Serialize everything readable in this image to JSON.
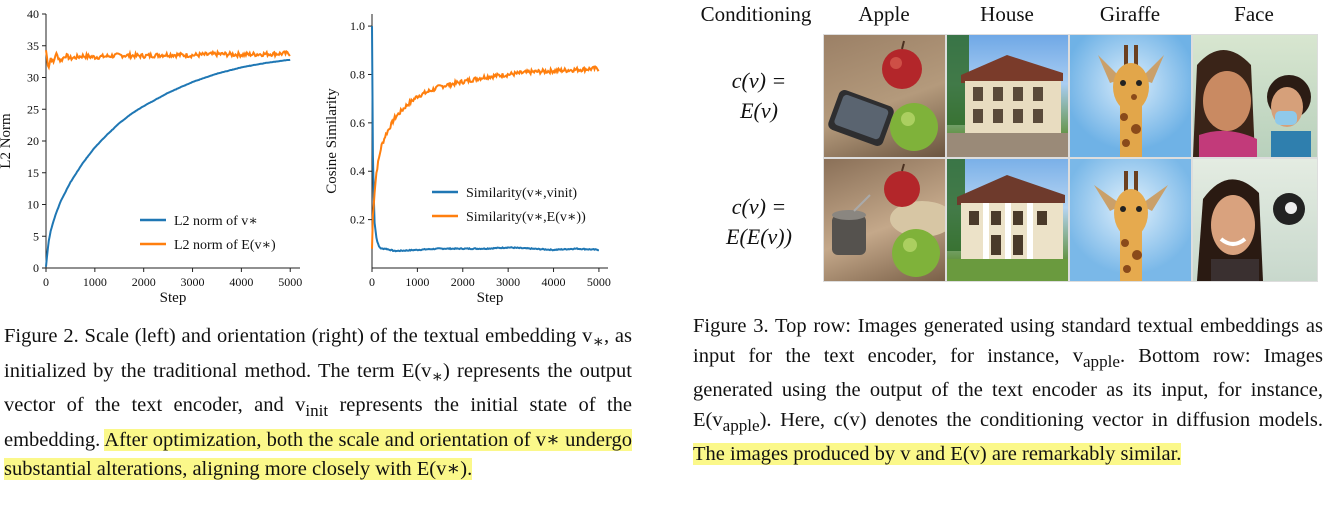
{
  "figure2": {
    "caption_parts": [
      "Figure 2. Scale (left) and orientation (right) of the textual embedding v",
      "∗",
      ", as initialized by the traditional method. The term E(v",
      "∗",
      ") represents the output vector of the text encoder, and v",
      "init",
      " represents the initial state of the embedding. "
    ],
    "caption_highlight": "After optimization, both the scale and orientation of v∗ undergo substantial alterations, aligning more closely with E(v∗)."
  },
  "figure3": {
    "caption_plain": "Figure 3. Top row: Images generated using standard textual embeddings as input for the text encoder, for instance, v",
    "caption_sub1": "apple",
    "caption_mid": ". Bottom row: Images generated using the output of the text encoder as its input, for instance, E(v",
    "caption_sub2": "apple",
    "caption_after": "). Here, c(v) denotes the conditioning vector in diffusion models. ",
    "caption_highlight": "The images produced by v and E(v) are remarkably similar.",
    "headers": [
      "Conditioning",
      "Apple",
      "House",
      "Giraffe",
      "Face"
    ],
    "rows": [
      {
        "label_line1": "c(v) =",
        "label_line2": "E(v)"
      },
      {
        "label_line1": "c(v) =",
        "label_line2": "E(E(v))"
      }
    ]
  },
  "chart_data": [
    {
      "type": "line",
      "xlabel": "Step",
      "ylabel": "L2 Norm",
      "xlim": [
        0,
        5200
      ],
      "ylim": [
        0,
        40
      ],
      "xticks": [
        0,
        1000,
        2000,
        3000,
        4000,
        5000
      ],
      "yticks": [
        0,
        5,
        10,
        15,
        20,
        25,
        30,
        35,
        40
      ],
      "legend": "bottom-right",
      "series": [
        {
          "name": "L2 norm of v∗",
          "color": "#1f77b4",
          "x": [
            0,
            50,
            100,
            200,
            300,
            500,
            750,
            1000,
            1250,
            1500,
            1750,
            2000,
            2500,
            3000,
            3500,
            4000,
            4500,
            5000
          ],
          "y": [
            0.2,
            4,
            6,
            8.5,
            10.5,
            13.5,
            16.5,
            19,
            21,
            22.8,
            24.3,
            25.5,
            27.6,
            29.3,
            30.6,
            31.6,
            32.3,
            32.8
          ]
        },
        {
          "name": "L2 norm of E(v∗)",
          "color": "#ff7f0e",
          "x": [
            0,
            50,
            100,
            150,
            200,
            300,
            400,
            500,
            750,
            1000,
            1500,
            2000,
            2500,
            3000,
            3500,
            4000,
            4500,
            5000
          ],
          "y": [
            34.3,
            31.5,
            33.2,
            32.2,
            33.8,
            32.6,
            33.5,
            33.0,
            33.4,
            33.2,
            33.5,
            33.4,
            33.6,
            33.5,
            33.7,
            33.6,
            33.7,
            33.8
          ]
        }
      ]
    },
    {
      "type": "line",
      "xlabel": "Step",
      "ylabel": "Cosine Similarity",
      "xlim": [
        0,
        5200
      ],
      "ylim": [
        0,
        1.05
      ],
      "xticks": [
        0,
        1000,
        2000,
        3000,
        4000,
        5000
      ],
      "yticks": [
        0.2,
        0.4,
        0.6,
        0.8,
        1.0
      ],
      "legend": "right",
      "series": [
        {
          "name": "Similarity(v∗,vinit)",
          "color": "#1f77b4",
          "x": [
            0,
            20,
            50,
            100,
            150,
            200,
            300,
            500,
            1000,
            1500,
            2000,
            2500,
            3000,
            3500,
            4000,
            4500,
            5000
          ],
          "y": [
            1.0,
            0.45,
            0.2,
            0.12,
            0.09,
            0.08,
            0.08,
            0.07,
            0.075,
            0.08,
            0.08,
            0.08,
            0.085,
            0.08,
            0.075,
            0.08,
            0.075
          ]
        },
        {
          "name": "Similarity(v∗,E(v∗))",
          "color": "#ff7f0e",
          "x": [
            0,
            20,
            50,
            100,
            200,
            300,
            500,
            750,
            1000,
            1500,
            2000,
            2500,
            3000,
            3500,
            4000,
            4500,
            5000
          ],
          "y": [
            0.08,
            0.22,
            0.3,
            0.4,
            0.5,
            0.55,
            0.62,
            0.67,
            0.71,
            0.75,
            0.77,
            0.79,
            0.8,
            0.81,
            0.815,
            0.82,
            0.825
          ]
        }
      ]
    }
  ]
}
